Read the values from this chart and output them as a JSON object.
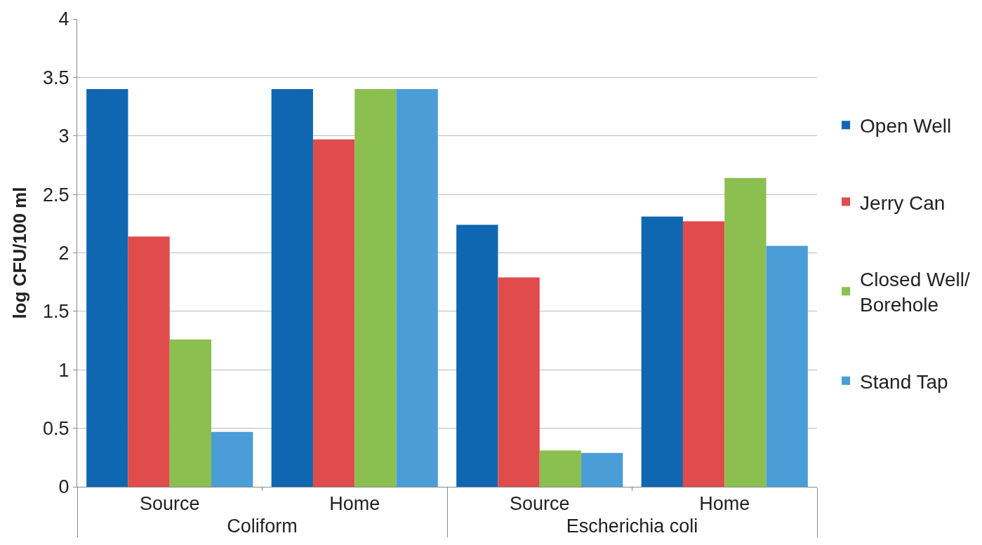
{
  "chart_data": {
    "type": "bar",
    "ylabel": "log CFU/100 ml",
    "categories": [
      "Source",
      "Home",
      "Source",
      "Home"
    ],
    "annotations": [
      "Coliform",
      "Escherichia coli"
    ],
    "series": [
      {
        "name": "Open Well",
        "color": "#0f67b1",
        "values": [
          3.4,
          3.4,
          2.24,
          2.31
        ]
      },
      {
        "name": "Jerry Can",
        "color": "#e04b4b",
        "values": [
          2.14,
          2.97,
          1.79,
          2.27
        ]
      },
      {
        "name": "Closed Well/ Borehole",
        "color": "#8bbf4f",
        "values": [
          1.26,
          3.4,
          0.31,
          2.64
        ]
      },
      {
        "name": "Stand Tap",
        "color": "#4a9dd6",
        "values": [
          0.47,
          3.4,
          0.29,
          2.06
        ]
      }
    ],
    "ylim": [
      0,
      4
    ],
    "yticks": [
      0,
      0.5,
      1,
      1.5,
      2,
      2.5,
      3,
      3.5,
      4
    ],
    "grid": "y",
    "legend": "right"
  }
}
